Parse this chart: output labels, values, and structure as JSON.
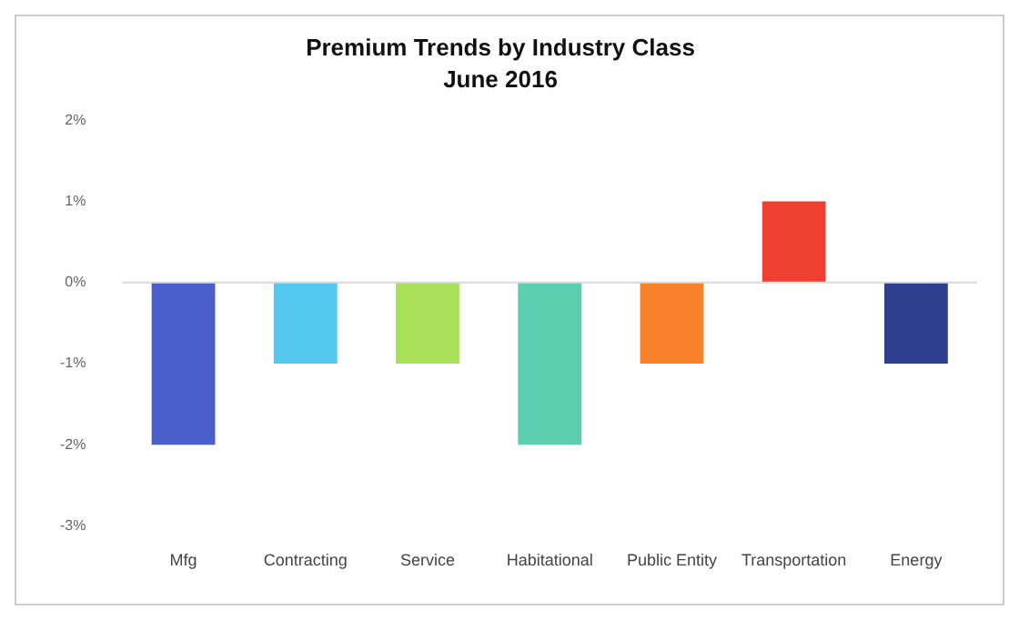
{
  "chart_data": {
    "type": "bar",
    "title": "Premium Trends by Industry Class",
    "subtitle": "June 2016",
    "categories": [
      "Mfg",
      "Contracting",
      "Service",
      "Habitational",
      "Public Entity",
      "Transportation",
      "Energy"
    ],
    "values": [
      -2,
      -1,
      -1,
      -2,
      -1,
      1,
      -1
    ],
    "colors": [
      "#4a5fc9",
      "#55c8f0",
      "#a8e05a",
      "#5ccfb0",
      "#f7822a",
      "#ee4030",
      "#2e3f8f"
    ],
    "ylim": [
      -3,
      2
    ],
    "yticks": [
      {
        "value": -3,
        "label": "-3%"
      },
      {
        "value": -2,
        "label": "-2%"
      },
      {
        "value": -1,
        "label": "-1%"
      },
      {
        "value": 0,
        "label": "0%"
      },
      {
        "value": 1,
        "label": "1%"
      },
      {
        "value": 2,
        "label": "2%"
      }
    ],
    "grid": false,
    "legend": false,
    "ref_lines": [
      {
        "axis": "y",
        "value": 0,
        "color": "#d9d9d9"
      }
    ]
  }
}
